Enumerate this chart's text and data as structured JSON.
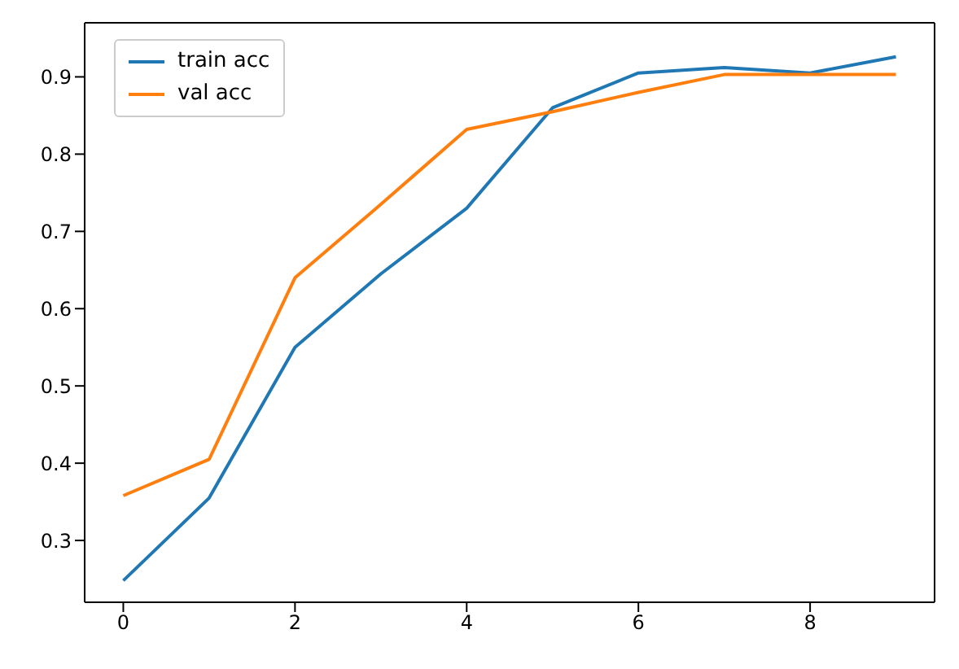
{
  "chart_data": {
    "type": "line",
    "x": [
      0,
      1,
      2,
      3,
      4,
      5,
      6,
      7,
      8,
      9
    ],
    "series": [
      {
        "name": "train acc",
        "color": "#1f77b4",
        "values": [
          0.248,
          0.355,
          0.55,
          0.645,
          0.73,
          0.86,
          0.905,
          0.912,
          0.905,
          0.926
        ]
      },
      {
        "name": "val acc",
        "color": "#ff7f0e",
        "values": [
          0.358,
          0.405,
          0.64,
          0.735,
          0.832,
          0.855,
          0.88,
          0.903,
          0.903,
          0.903
        ]
      }
    ],
    "xlim": [
      -0.45,
      9.45
    ],
    "xticks": [
      0,
      2,
      4,
      6,
      8
    ],
    "ylim": [
      0.22,
      0.97
    ],
    "yticks": [
      0.3,
      0.4,
      0.5,
      0.6,
      0.7,
      0.8,
      0.9
    ],
    "legend": "top left",
    "marker": "none",
    "line_style": "solid"
  }
}
